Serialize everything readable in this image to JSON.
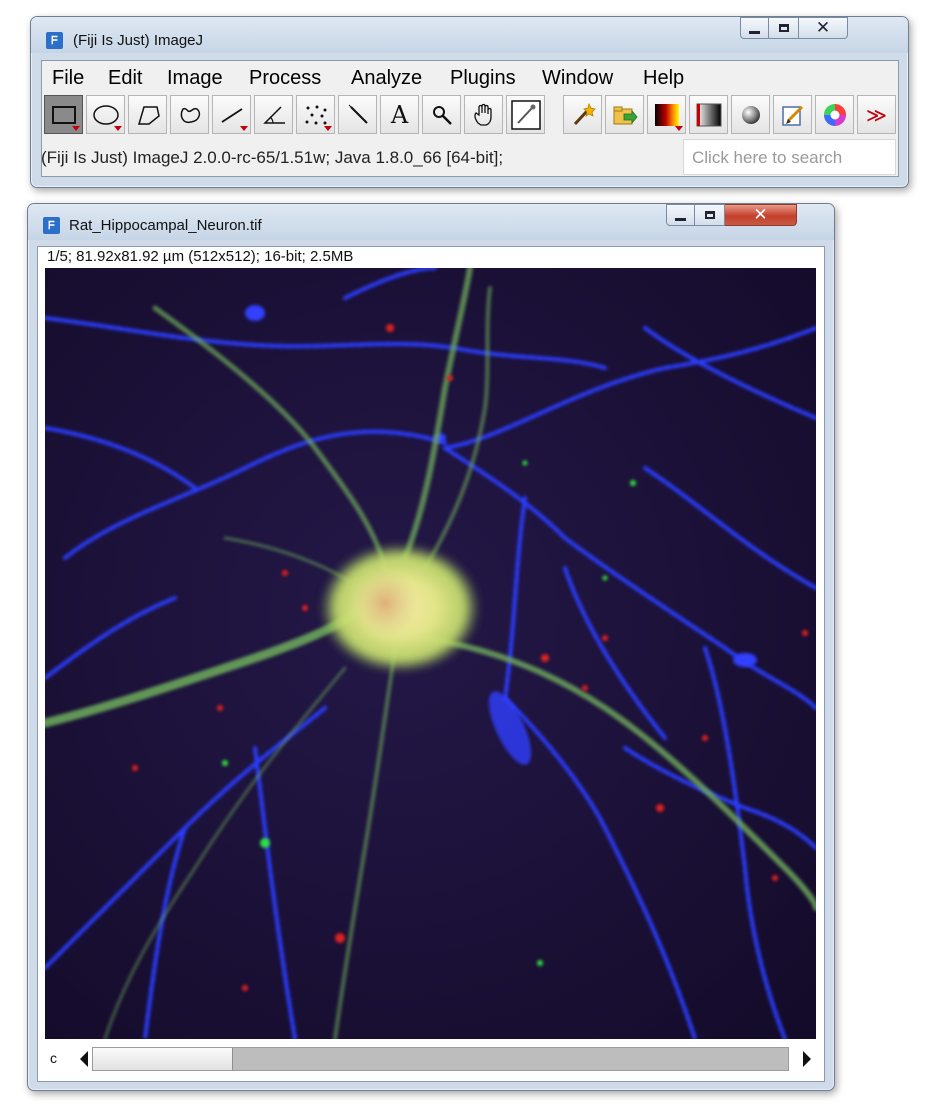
{
  "main_window": {
    "title": "(Fiji Is Just) ImageJ",
    "menu": [
      "File",
      "Edit",
      "Image",
      "Process",
      "Analyze",
      "Plugins",
      "Window",
      "Help"
    ],
    "toolbar_icons": [
      "rectangle-selection-icon",
      "oval-selection-icon",
      "polygon-selection-icon",
      "freehand-selection-icon",
      "line-selection-icon",
      "angle-tool-icon",
      "multi-point-tool-icon",
      "wand-tool-icon",
      "text-tool-icon",
      "magnifying-glass-icon",
      "hand-scroll-icon",
      "color-picker-icon",
      "magic-wand-plugin-icon",
      "open-dialog-icon",
      "lut-icon",
      "gradient-icon",
      "sphere-icon",
      "edit-icon",
      "color-wheel-icon",
      "more-tools-icon"
    ],
    "more_tools_glyph": "≫",
    "text_tool_glyph": "A",
    "status": "(Fiji Is Just) ImageJ 2.0.0-rc-65/1.51w; Java 1.8.0_66 [64-bit];",
    "search_placeholder": "Click here to search"
  },
  "image_window": {
    "title": "Rat_Hippocampal_Neuron.tif",
    "info": "1/5; 81.92x81.92 µm (512x512); 16-bit; 2.5MB",
    "channel_label": "c",
    "channel_position": 1,
    "channel_count": 5
  },
  "window_controls": {
    "minimize": "minimize-icon",
    "maximize": "maximize-icon",
    "close": "close-icon",
    "close_glyph": "✕"
  },
  "app_icon_glyph": "ᖴ",
  "colors": {
    "accent_close": "#c4402b",
    "titlebar": "#cfdbe9",
    "canvas_background": "#1a1033"
  }
}
